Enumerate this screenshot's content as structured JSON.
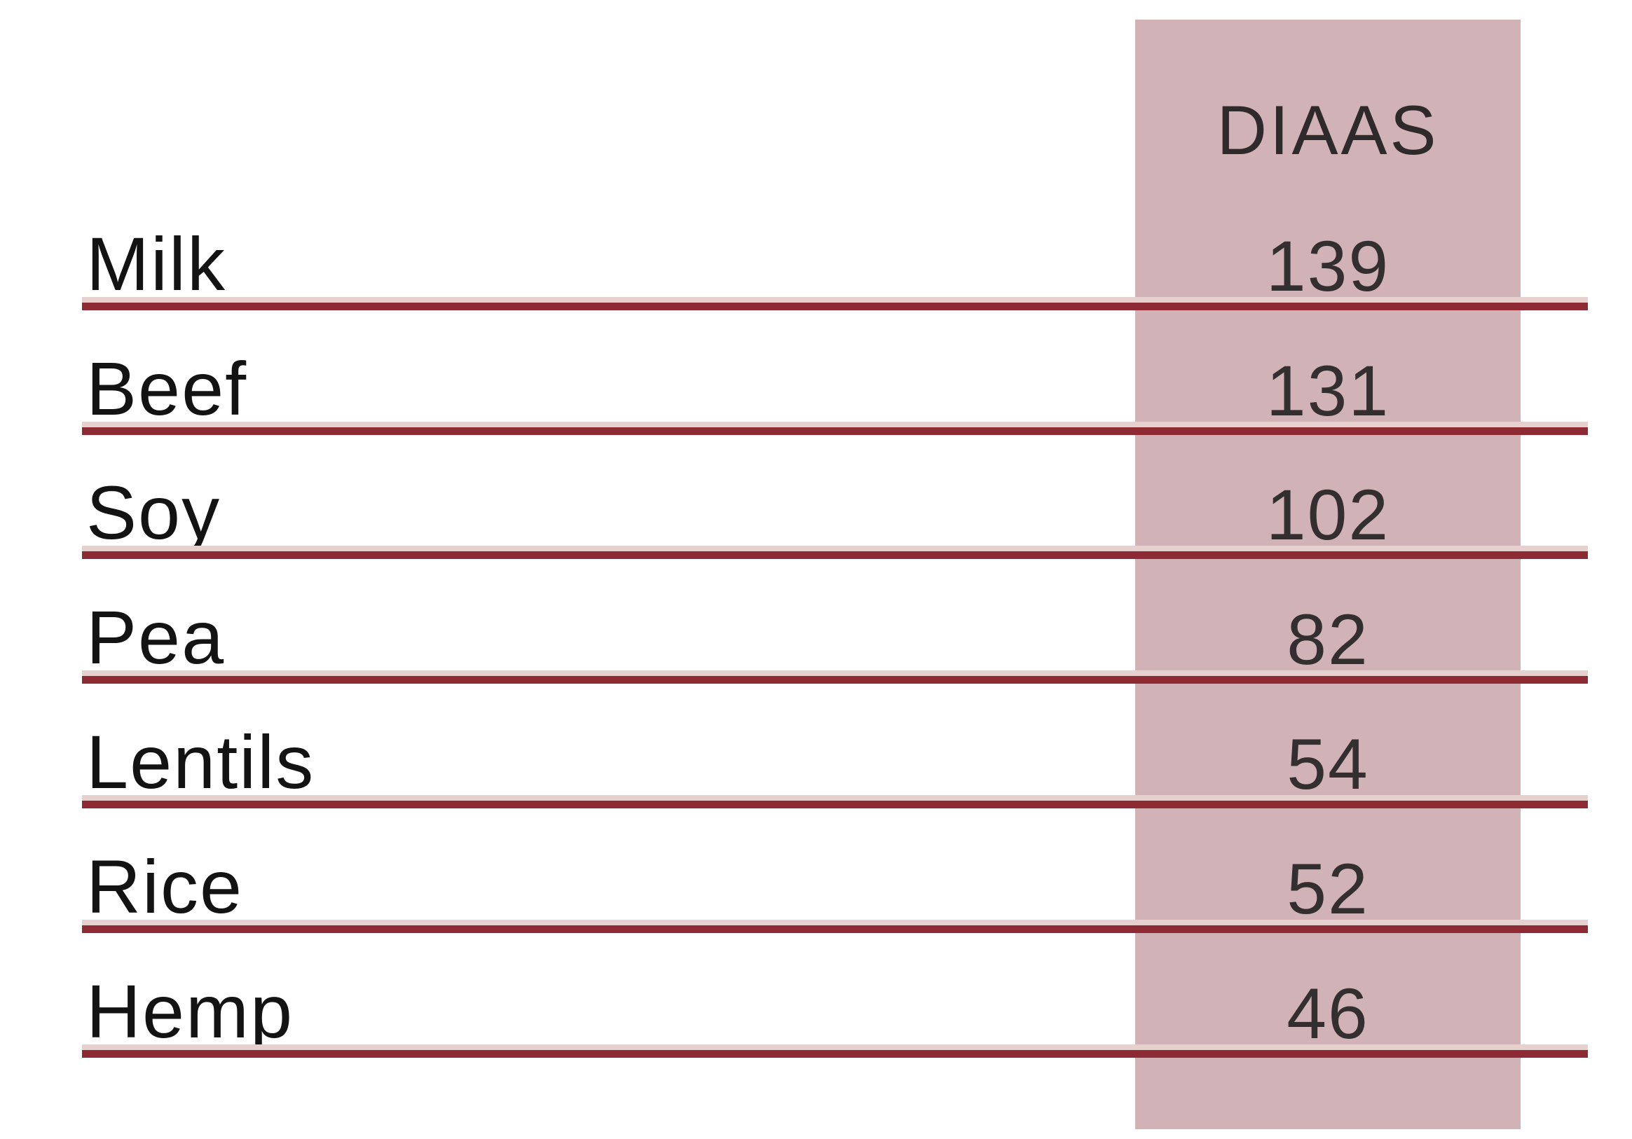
{
  "table": {
    "column_header": "DIAAS",
    "rows": [
      {
        "label": "Milk",
        "value": "139"
      },
      {
        "label": "Beef",
        "value": "131"
      },
      {
        "label": "Soy",
        "value": "102"
      },
      {
        "label": "Pea",
        "value": "82"
      },
      {
        "label": "Lentils",
        "value": "54"
      },
      {
        "label": "Rice",
        "value": "52"
      },
      {
        "label": "Hemp",
        "value": "46"
      }
    ]
  },
  "colors": {
    "highlight_column": "#d1b3b7",
    "row_line_dark": "#8e2a34",
    "row_line_light": "#e7d1cf",
    "header_text": "#2e292a",
    "label_text": "#131313",
    "value_text": "#332e2f",
    "background": "#ffffff"
  },
  "chart_data": {
    "type": "table",
    "columns": [
      "",
      "DIAAS"
    ],
    "rows": [
      [
        "Milk",
        139
      ],
      [
        "Beef",
        131
      ],
      [
        "Soy",
        102
      ],
      [
        "Pea",
        82
      ],
      [
        "Lentils",
        54
      ],
      [
        "Rice",
        52
      ],
      [
        "Hemp",
        46
      ]
    ],
    "highlighted_column": "DIAAS",
    "layout": {
      "value_column_highlight": true,
      "row_separators": true,
      "grid": "horizontal-only"
    }
  }
}
